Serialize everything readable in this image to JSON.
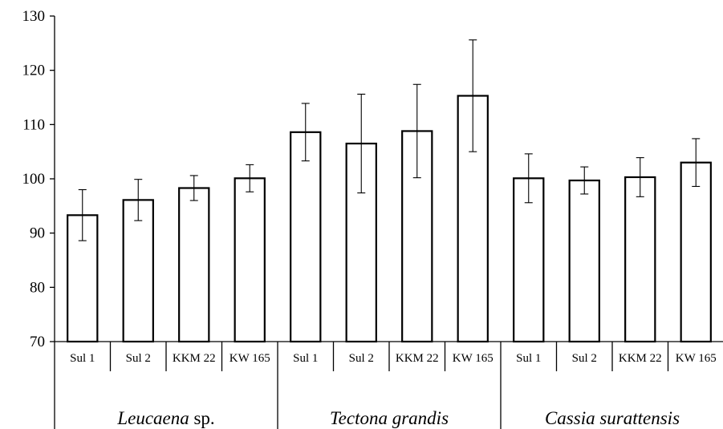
{
  "chart_data": {
    "type": "bar",
    "title": "",
    "xlabel": "",
    "ylabel": "",
    "ylim": [
      70,
      130
    ],
    "yticks": [
      "70",
      "80",
      "90",
      "100",
      "110",
      "120",
      "130"
    ],
    "grid": false,
    "groups": [
      {
        "label_parts": [
          {
            "text": "Leucaena",
            "italic": true
          },
          {
            "text": " sp.",
            "italic": false
          }
        ],
        "categories": [
          "Sul 1",
          "Sul 2",
          "KKM 22",
          "KW 165"
        ],
        "values": [
          93.3,
          96.1,
          98.3,
          100.1
        ],
        "errors": [
          4.7,
          3.8,
          2.3,
          2.5
        ]
      },
      {
        "label_parts": [
          {
            "text": "Tectona grandis",
            "italic": true
          }
        ],
        "categories": [
          "Sul 1",
          "Sul 2",
          "KKM 22",
          "KW 165"
        ],
        "values": [
          108.6,
          106.5,
          108.8,
          115.3
        ],
        "errors": [
          5.3,
          9.1,
          8.6,
          10.3
        ]
      },
      {
        "label_parts": [
          {
            "text": "Cassia surattensis",
            "italic": true
          }
        ],
        "categories": [
          "Sul 1",
          "Sul 2",
          "KKM 22",
          "KW 165"
        ],
        "values": [
          100.1,
          99.7,
          100.3,
          103.0
        ],
        "errors": [
          4.5,
          2.5,
          3.6,
          4.4
        ]
      }
    ]
  }
}
